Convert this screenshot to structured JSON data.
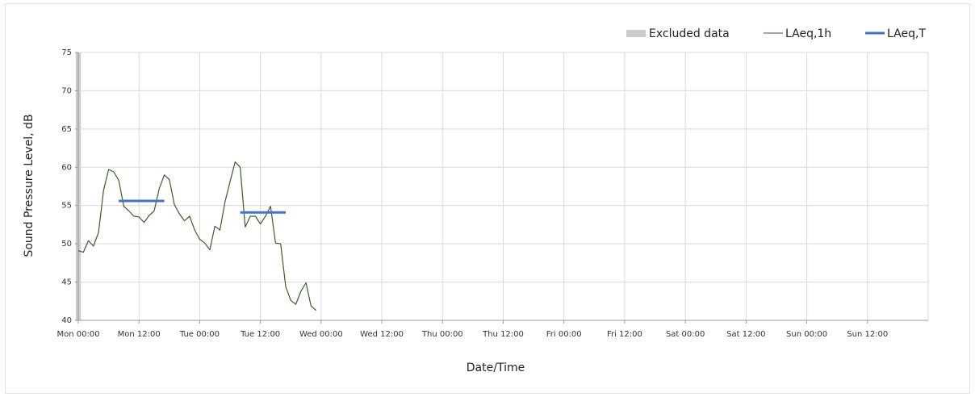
{
  "chart_data": {
    "type": "line",
    "title": "",
    "xlabel": "Date/Time",
    "ylabel": "Sound Pressure Level, dB",
    "ylim": [
      40,
      75
    ],
    "y_ticks": [
      40,
      45,
      50,
      55,
      60,
      65,
      70,
      75
    ],
    "x_unit": "hours since Mon 00:00",
    "xlim": [
      0,
      168
    ],
    "x_ticks": [
      {
        "h": 0,
        "label": "Mon 00:00"
      },
      {
        "h": 12,
        "label": "Mon 12:00"
      },
      {
        "h": 24,
        "label": "Tue 00:00"
      },
      {
        "h": 36,
        "label": "Tue 12:00"
      },
      {
        "h": 48,
        "label": "Wed 00:00"
      },
      {
        "h": 60,
        "label": "Wed 12:00"
      },
      {
        "h": 72,
        "label": "Thu 00:00"
      },
      {
        "h": 84,
        "label": "Thu 12:00"
      },
      {
        "h": 96,
        "label": "Fri 00:00"
      },
      {
        "h": 108,
        "label": "Fri 12:00"
      },
      {
        "h": 120,
        "label": "Sat 00:00"
      },
      {
        "h": 132,
        "label": "Sat 12:00"
      },
      {
        "h": 144,
        "label": "Sun 00:00"
      },
      {
        "h": 156,
        "label": "Sun 12:00"
      }
    ],
    "grid": true,
    "legend_position": "top-right",
    "legend": [
      {
        "label": "Excluded data",
        "kind": "band",
        "color": "#cccccc"
      },
      {
        "label": "LAeq,1h",
        "kind": "thin-line",
        "color": "#3a5e2a"
      },
      {
        "label": "LAeq,T",
        "kind": "thick-line",
        "color": "#4472c4"
      }
    ],
    "excluded_ranges": [
      [
        -0.5,
        0.5
      ]
    ],
    "series": [
      {
        "name": "LAeq,1h",
        "color": "#3a5e2a",
        "points": [
          [
            0,
            49.1
          ],
          [
            1,
            48.9
          ],
          [
            2,
            50.4
          ],
          [
            3,
            49.7
          ],
          [
            4,
            51.5
          ],
          [
            5,
            57.0
          ],
          [
            6,
            59.7
          ],
          [
            7,
            59.4
          ],
          [
            8,
            58.3
          ],
          [
            9,
            54.9
          ],
          [
            10,
            54.3
          ],
          [
            11,
            53.6
          ],
          [
            12,
            53.5
          ],
          [
            13,
            52.8
          ],
          [
            14,
            53.7
          ],
          [
            15,
            54.3
          ],
          [
            16,
            57.2
          ],
          [
            17,
            59.0
          ],
          [
            18,
            58.4
          ],
          [
            19,
            55.1
          ],
          [
            20,
            53.9
          ],
          [
            21,
            53.0
          ],
          [
            22,
            53.6
          ],
          [
            23,
            51.8
          ],
          [
            24,
            50.6
          ],
          [
            25,
            50.1
          ],
          [
            26,
            49.2
          ],
          [
            27,
            52.3
          ],
          [
            28,
            51.8
          ],
          [
            29,
            55.5
          ],
          [
            30,
            58.1
          ],
          [
            31,
            60.7
          ],
          [
            32,
            60.0
          ],
          [
            33,
            52.2
          ],
          [
            34,
            53.6
          ],
          [
            35,
            53.6
          ],
          [
            36,
            52.6
          ],
          [
            37,
            53.6
          ],
          [
            38,
            54.9
          ],
          [
            39,
            50.1
          ],
          [
            40,
            50.0
          ],
          [
            41,
            44.4
          ],
          [
            42,
            42.6
          ],
          [
            43,
            42.1
          ],
          [
            44,
            43.8
          ],
          [
            45,
            44.9
          ],
          [
            46,
            41.9
          ],
          [
            47,
            41.3
          ]
        ]
      },
      {
        "name": "LAeq,T",
        "color": "#4472c4",
        "segments": [
          {
            "x": [
              8,
              17
            ],
            "y": 55.6
          },
          {
            "x": [
              32,
              41
            ],
            "y": 54.1
          }
        ]
      }
    ]
  }
}
